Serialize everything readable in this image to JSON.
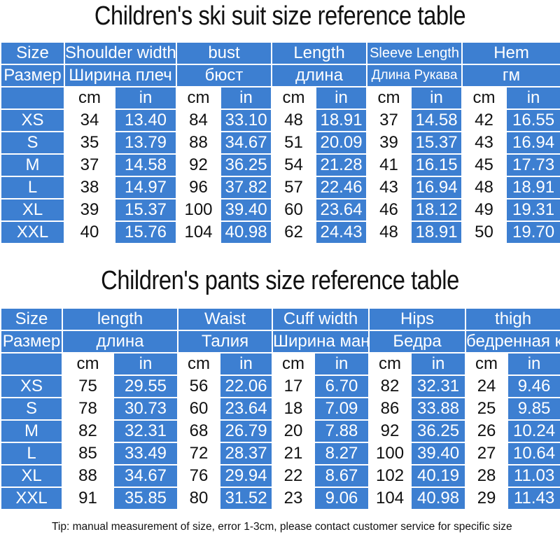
{
  "suit": {
    "title": "Children's ski suit size reference table",
    "headers_en": [
      "Size",
      "Shoulder width",
      "bust",
      "Length",
      "Sleeve Length",
      "Hem"
    ],
    "headers_ru": [
      "Размер",
      "Ширина плеч",
      "бюст",
      "длина",
      "Длина Рукава",
      "гм"
    ],
    "unit_cm": "cm",
    "unit_in": "in",
    "rows": [
      {
        "size": "XS",
        "vals": [
          "34",
          "13.40",
          "84",
          "33.10",
          "48",
          "18.91",
          "37",
          "14.58",
          "42",
          "16.55"
        ]
      },
      {
        "size": "S",
        "vals": [
          "35",
          "13.79",
          "88",
          "34.67",
          "51",
          "20.09",
          "39",
          "15.37",
          "43",
          "16.94"
        ]
      },
      {
        "size": "M",
        "vals": [
          "37",
          "14.58",
          "92",
          "36.25",
          "54",
          "21.28",
          "41",
          "16.15",
          "45",
          "17.73"
        ]
      },
      {
        "size": "L",
        "vals": [
          "38",
          "14.97",
          "96",
          "37.82",
          "57",
          "22.46",
          "43",
          "16.94",
          "48",
          "18.91"
        ]
      },
      {
        "size": "XL",
        "vals": [
          "39",
          "15.37",
          "100",
          "39.40",
          "60",
          "23.64",
          "46",
          "18.12",
          "49",
          "19.31"
        ]
      },
      {
        "size": "XXL",
        "vals": [
          "40",
          "15.76",
          "104",
          "40.98",
          "62",
          "24.43",
          "48",
          "18.91",
          "50",
          "19.70"
        ]
      }
    ]
  },
  "pants": {
    "title": "Children's pants size reference table",
    "headers_en": [
      "Size",
      "length",
      "Waist",
      "Cuff width",
      "Hips",
      "thigh"
    ],
    "headers_ru": [
      "Размер",
      "длина",
      "Талия",
      "Ширина манжеты",
      "Бедра",
      "бедренная кость"
    ],
    "unit_cm": "cm",
    "unit_in": "in",
    "rows": [
      {
        "size": "XS",
        "vals": [
          "75",
          "29.55",
          "56",
          "22.06",
          "17",
          "6.70",
          "82",
          "32.31",
          "24",
          "9.46"
        ]
      },
      {
        "size": "S",
        "vals": [
          "78",
          "30.73",
          "60",
          "23.64",
          "18",
          "7.09",
          "86",
          "33.88",
          "25",
          "9.85"
        ]
      },
      {
        "size": "M",
        "vals": [
          "82",
          "32.31",
          "68",
          "26.79",
          "20",
          "7.88",
          "92",
          "36.25",
          "26",
          "10.24"
        ]
      },
      {
        "size": "L",
        "vals": [
          "85",
          "33.49",
          "72",
          "28.37",
          "21",
          "8.27",
          "100",
          "39.40",
          "27",
          "10.64"
        ]
      },
      {
        "size": "XL",
        "vals": [
          "88",
          "34.67",
          "76",
          "29.94",
          "22",
          "8.67",
          "102",
          "40.19",
          "28",
          "11.03"
        ]
      },
      {
        "size": "XXL",
        "vals": [
          "91",
          "35.85",
          "80",
          "31.52",
          "23",
          "9.06",
          "104",
          "40.98",
          "29",
          "11.43"
        ]
      }
    ]
  },
  "tip": "Tip: manual measurement of size, error 1-3cm, please contact customer service for specific size",
  "colors": {
    "header_blue": "#3d7fd1",
    "text": "#111111",
    "background": "#ffffff"
  }
}
